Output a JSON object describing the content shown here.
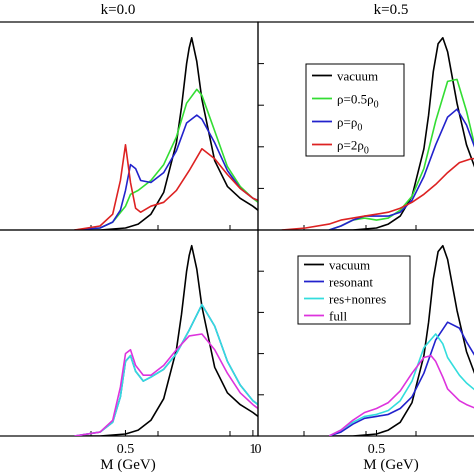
{
  "xlabel": "M (GeV)",
  "chart_data": [
    {
      "type": "line",
      "title": "k=0.0",
      "xlabel": "",
      "ylabel": "",
      "xlim": [
        0.0,
        1.02
      ],
      "ylim": [
        0,
        1.05
      ],
      "legend": [],
      "series": [
        {
          "name": "vacuum",
          "color": "#000000",
          "x": [
            0.3,
            0.4,
            0.5,
            0.55,
            0.6,
            0.65,
            0.7,
            0.72,
            0.74,
            0.75,
            0.76,
            0.78,
            0.8,
            0.85,
            0.9,
            0.95,
            1.0,
            1.02
          ],
          "y": [
            0.0,
            0.0,
            0.01,
            0.03,
            0.08,
            0.19,
            0.44,
            0.62,
            0.84,
            0.92,
            0.97,
            0.85,
            0.66,
            0.35,
            0.22,
            0.16,
            0.12,
            0.1
          ]
        },
        {
          "name": "ρ=0.5ρ0",
          "color": "#33dd33",
          "x": [
            0.3,
            0.4,
            0.45,
            0.5,
            0.52,
            0.55,
            0.6,
            0.65,
            0.7,
            0.74,
            0.78,
            0.8,
            0.85,
            0.9,
            0.95,
            1.0,
            1.02
          ],
          "y": [
            0.0,
            0.01,
            0.04,
            0.12,
            0.18,
            0.2,
            0.25,
            0.33,
            0.47,
            0.64,
            0.71,
            0.68,
            0.5,
            0.32,
            0.22,
            0.16,
            0.14
          ]
        },
        {
          "name": "ρ=ρ0",
          "color": "#2222cc",
          "x": [
            0.3,
            0.4,
            0.45,
            0.48,
            0.5,
            0.52,
            0.54,
            0.56,
            0.6,
            0.65,
            0.7,
            0.74,
            0.78,
            0.8,
            0.85,
            0.9,
            0.95,
            1.0,
            1.02
          ],
          "y": [
            0.0,
            0.01,
            0.04,
            0.1,
            0.2,
            0.33,
            0.31,
            0.25,
            0.24,
            0.29,
            0.4,
            0.54,
            0.58,
            0.56,
            0.44,
            0.3,
            0.21,
            0.16,
            0.15
          ]
        },
        {
          "name": "ρ=2ρ0",
          "color": "#dd2222",
          "x": [
            0.3,
            0.4,
            0.45,
            0.48,
            0.5,
            0.52,
            0.54,
            0.56,
            0.6,
            0.65,
            0.7,
            0.75,
            0.8,
            0.85,
            0.9,
            0.95,
            1.0,
            1.02
          ],
          "y": [
            0.0,
            0.02,
            0.08,
            0.25,
            0.43,
            0.24,
            0.11,
            0.09,
            0.12,
            0.14,
            0.2,
            0.3,
            0.41,
            0.36,
            0.28,
            0.21,
            0.16,
            0.15
          ]
        }
      ]
    },
    {
      "type": "line",
      "title": "k=0.5",
      "xlabel": "",
      "ylabel": "",
      "xlim": [
        0.0,
        0.92
      ],
      "ylim": [
        0,
        1.05
      ],
      "legend_position": "top-right",
      "legend": [
        {
          "label": "vacuum",
          "color": "#000000"
        },
        {
          "label": "ρ=0.5ρ",
          "sub": "0",
          "color": "#33dd33"
        },
        {
          "label": "ρ=ρ",
          "sub": "0",
          "color": "#2222cc"
        },
        {
          "label": "ρ=2ρ",
          "sub": "0",
          "color": "#dd2222"
        }
      ],
      "series": [
        {
          "name": "vacuum",
          "color": "#000000",
          "x": [
            0.3,
            0.4,
            0.5,
            0.55,
            0.6,
            0.65,
            0.7,
            0.72,
            0.74,
            0.76,
            0.78,
            0.8,
            0.84,
            0.88,
            0.92
          ],
          "y": [
            0.0,
            0.0,
            0.01,
            0.03,
            0.07,
            0.17,
            0.41,
            0.58,
            0.8,
            0.94,
            0.97,
            0.9,
            0.64,
            0.43,
            0.3
          ]
        },
        {
          "name": "ρ=0.5ρ0",
          "color": "#33dd33",
          "x": [
            0.3,
            0.35,
            0.4,
            0.45,
            0.5,
            0.55,
            0.6,
            0.65,
            0.7,
            0.75,
            0.8,
            0.84,
            0.88,
            0.92
          ],
          "y": [
            0.0,
            0.02,
            0.05,
            0.06,
            0.05,
            0.06,
            0.1,
            0.17,
            0.31,
            0.55,
            0.75,
            0.76,
            0.6,
            0.4
          ]
        },
        {
          "name": "ρ=ρ0",
          "color": "#2222cc",
          "x": [
            0.3,
            0.35,
            0.4,
            0.45,
            0.5,
            0.55,
            0.6,
            0.65,
            0.7,
            0.75,
            0.8,
            0.84,
            0.88,
            0.92
          ],
          "y": [
            0.0,
            0.02,
            0.05,
            0.07,
            0.07,
            0.07,
            0.09,
            0.15,
            0.27,
            0.43,
            0.57,
            0.61,
            0.53,
            0.4
          ]
        },
        {
          "name": "ρ=2ρ0",
          "color": "#dd2222",
          "x": [
            0.1,
            0.2,
            0.3,
            0.35,
            0.4,
            0.45,
            0.5,
            0.55,
            0.6,
            0.65,
            0.7,
            0.75,
            0.8,
            0.85,
            0.9,
            0.92
          ],
          "y": [
            0.0,
            0.01,
            0.03,
            0.05,
            0.06,
            0.07,
            0.08,
            0.09,
            0.11,
            0.14,
            0.18,
            0.23,
            0.29,
            0.34,
            0.36,
            0.36
          ]
        }
      ]
    },
    {
      "type": "line",
      "title": "",
      "xlabel": "M (GeV)",
      "ylabel": "",
      "xlim": [
        0.0,
        1.02
      ],
      "ylim": [
        0,
        1.05
      ],
      "xticks": [
        {
          "value": 0.5,
          "label": "0.5"
        },
        {
          "value": 1.0,
          "label": "1"
        }
      ],
      "legend": [],
      "series": [
        {
          "name": "vacuum",
          "color": "#000000",
          "x": [
            0.3,
            0.4,
            0.5,
            0.55,
            0.6,
            0.65,
            0.7,
            0.72,
            0.74,
            0.75,
            0.76,
            0.78,
            0.8,
            0.85,
            0.9,
            0.95,
            1.0,
            1.02
          ],
          "y": [
            0.0,
            0.0,
            0.01,
            0.03,
            0.08,
            0.19,
            0.44,
            0.62,
            0.84,
            0.92,
            0.97,
            0.85,
            0.66,
            0.35,
            0.22,
            0.16,
            0.12,
            0.1
          ]
        },
        {
          "name": "resonant",
          "color": "#2222cc",
          "x": [
            0.3,
            0.4,
            0.45,
            0.48,
            0.5,
            0.52,
            0.54,
            0.57,
            0.6,
            0.65,
            0.7,
            0.75,
            0.8,
            0.85,
            0.9,
            0.95,
            1.0,
            1.02
          ],
          "y": [
            0.0,
            0.02,
            0.07,
            0.2,
            0.38,
            0.41,
            0.33,
            0.28,
            0.3,
            0.34,
            0.42,
            0.54,
            0.67,
            0.56,
            0.38,
            0.26,
            0.18,
            0.16
          ]
        },
        {
          "name": "res+nonres",
          "color": "#33dddd",
          "x": [
            0.3,
            0.4,
            0.45,
            0.48,
            0.5,
            0.52,
            0.54,
            0.57,
            0.6,
            0.65,
            0.7,
            0.75,
            0.8,
            0.85,
            0.9,
            0.95,
            1.0,
            1.02
          ],
          "y": [
            0.0,
            0.02,
            0.07,
            0.2,
            0.38,
            0.41,
            0.33,
            0.28,
            0.3,
            0.34,
            0.42,
            0.54,
            0.67,
            0.56,
            0.38,
            0.26,
            0.18,
            0.16
          ]
        },
        {
          "name": "full",
          "color": "#dd33dd",
          "x": [
            0.3,
            0.4,
            0.45,
            0.48,
            0.5,
            0.52,
            0.54,
            0.57,
            0.6,
            0.65,
            0.7,
            0.75,
            0.8,
            0.85,
            0.9,
            0.95,
            1.0,
            1.02
          ],
          "y": [
            0.0,
            0.02,
            0.08,
            0.25,
            0.42,
            0.44,
            0.36,
            0.31,
            0.31,
            0.36,
            0.44,
            0.51,
            0.52,
            0.44,
            0.32,
            0.22,
            0.16,
            0.14
          ]
        }
      ]
    },
    {
      "type": "line",
      "title": "",
      "xlabel": "M (GeV)",
      "ylabel": "",
      "xlim": [
        0.0,
        0.92
      ],
      "ylim": [
        0,
        1.05
      ],
      "xticks": [
        {
          "value": 0.0,
          "label": "0"
        },
        {
          "value": 0.5,
          "label": "0.5"
        }
      ],
      "legend_position": "top-right",
      "legend": [
        {
          "label": "vacuum",
          "color": "#000000"
        },
        {
          "label": "resonant",
          "color": "#2222cc"
        },
        {
          "label": "res+nonres",
          "color": "#33dddd"
        },
        {
          "label": "full",
          "color": "#dd33dd"
        }
      ],
      "series": [
        {
          "name": "vacuum",
          "color": "#000000",
          "x": [
            0.3,
            0.4,
            0.5,
            0.55,
            0.6,
            0.65,
            0.7,
            0.72,
            0.74,
            0.76,
            0.78,
            0.8,
            0.84,
            0.88,
            0.92
          ],
          "y": [
            0.0,
            0.0,
            0.01,
            0.03,
            0.07,
            0.17,
            0.41,
            0.58,
            0.8,
            0.94,
            0.97,
            0.9,
            0.64,
            0.43,
            0.3
          ]
        },
        {
          "name": "resonant",
          "color": "#2222cc",
          "x": [
            0.3,
            0.35,
            0.4,
            0.45,
            0.5,
            0.55,
            0.6,
            0.65,
            0.7,
            0.75,
            0.8,
            0.85,
            0.88,
            0.92
          ],
          "y": [
            0.0,
            0.02,
            0.06,
            0.09,
            0.1,
            0.11,
            0.14,
            0.2,
            0.32,
            0.49,
            0.58,
            0.55,
            0.48,
            0.4
          ]
        },
        {
          "name": "res+nonres",
          "color": "#33dddd",
          "x": [
            0.3,
            0.35,
            0.4,
            0.45,
            0.5,
            0.55,
            0.6,
            0.65,
            0.7,
            0.75,
            0.78,
            0.8,
            0.85,
            0.88,
            0.92
          ],
          "y": [
            0.0,
            0.03,
            0.07,
            0.1,
            0.11,
            0.13,
            0.18,
            0.28,
            0.45,
            0.52,
            0.47,
            0.4,
            0.31,
            0.27,
            0.23
          ]
        },
        {
          "name": "full",
          "color": "#dd33dd",
          "x": [
            0.3,
            0.35,
            0.4,
            0.45,
            0.5,
            0.55,
            0.6,
            0.65,
            0.7,
            0.73,
            0.75,
            0.78,
            0.8,
            0.85,
            0.88,
            0.92
          ],
          "y": [
            0.0,
            0.03,
            0.08,
            0.12,
            0.14,
            0.17,
            0.23,
            0.32,
            0.4,
            0.41,
            0.38,
            0.3,
            0.24,
            0.18,
            0.16,
            0.14
          ]
        }
      ]
    }
  ]
}
